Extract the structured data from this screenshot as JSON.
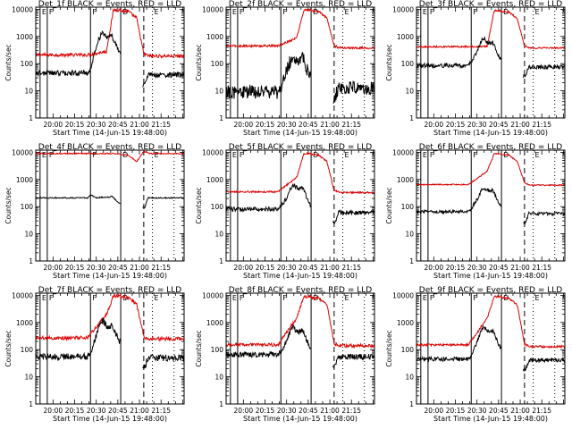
{
  "chart_data": {
    "type": "line",
    "x_axis": {
      "label": "Start Time (14-Jun-15 19:48:00)",
      "tick_labels": [
        "20:00",
        "20:15",
        "20:30",
        "20:45",
        "21:00",
        "21:15"
      ],
      "tick_minutes": [
        0,
        15,
        30,
        45,
        60,
        75
      ],
      "range_minutes": [
        -12,
        91
      ],
      "range_note": "minutes after 20:00"
    },
    "y_axis": {
      "label": "Counts/sec",
      "scale": "log",
      "ylim": [
        1,
        12000
      ],
      "tick_labels": [
        "1",
        "10",
        "100",
        "1000",
        "10000"
      ],
      "tick_values": [
        1,
        10,
        100,
        1000,
        10000
      ]
    },
    "series_colors": {
      "events": "#000000",
      "lld": "#dd0000"
    },
    "solid_markers_minutes": [
      -9,
      -4,
      26,
      47
    ],
    "dashed_markers_minutes": [
      63
    ],
    "dotted_markers_minutes": [
      69,
      84
    ],
    "solid_marker_labels": [
      "E",
      "F",
      "F",
      "D"
    ],
    "end_marker_label": "E",
    "panels": [
      {
        "title": "Det_1f BLACK = Events, RED = LLD",
        "events": {
          "base": 45,
          "p1": 1500,
          "p2": 900,
          "mid": 450,
          "post": 38,
          "noise": 0.1
        },
        "lld": {
          "base": 210,
          "pre_rise": 280,
          "peak": 9500,
          "post": 190,
          "noise": 0.06
        }
      },
      {
        "title": "Det_2f BLACK = Events, RED = LLD",
        "events": {
          "base": 9,
          "p1": 180,
          "p2": 150,
          "mid": 60,
          "post": 13,
          "noise": 0.25
        },
        "lld": {
          "base": 450,
          "pre_rise": 900,
          "peak": 9500,
          "post": 380,
          "noise": 0.04
        }
      },
      {
        "title": "Det_3f BLACK = Events, RED = LLD",
        "events": {
          "base": 85,
          "p1": 900,
          "p2": 550,
          "mid": 260,
          "post": 75,
          "noise": 0.08
        },
        "lld": {
          "base": 420,
          "pre_rise": 430,
          "peak": 9000,
          "post": 380,
          "noise": 0.03
        }
      },
      {
        "title": "Det_4f BLACK = Events, RED = LLD",
        "events": {
          "base": 210,
          "p1": 220,
          "p2": 220,
          "mid": 215,
          "post": 210,
          "noise": 0.02
        },
        "lld": {
          "base": 9000,
          "pre_rise": 9000,
          "peak": 9000,
          "post": 9000,
          "noise": 0.02
        }
      },
      {
        "title": "Det_5f BLACK = Events, RED = LLD",
        "events": {
          "base": 80,
          "p1": 650,
          "p2": 450,
          "mid": 200,
          "post": 60,
          "noise": 0.08
        },
        "lld": {
          "base": 350,
          "pre_rise": 1200,
          "peak": 9000,
          "post": 330,
          "noise": 0.03
        }
      },
      {
        "title": "Det_6f BLACK = Events, RED = LLD",
        "events": {
          "base": 65,
          "p1": 500,
          "p2": 380,
          "mid": 180,
          "post": 55,
          "noise": 0.06
        },
        "lld": {
          "base": 650,
          "pre_rise": 2000,
          "peak": 9000,
          "post": 620,
          "noise": 0.02
        }
      },
      {
        "title": "Det_7f BLACK = Events, RED = LLD",
        "events": {
          "base": 55,
          "p1": 1200,
          "p2": 700,
          "mid": 350,
          "post": 50,
          "noise": 0.12
        },
        "lld": {
          "base": 270,
          "pre_rise": 2000,
          "peak": 9500,
          "post": 250,
          "noise": 0.07
        }
      },
      {
        "title": "Det_8f BLACK = Events, RED = LLD",
        "events": {
          "base": 65,
          "p1": 700,
          "p2": 450,
          "mid": 220,
          "post": 55,
          "noise": 0.1
        },
        "lld": {
          "base": 150,
          "pre_rise": 1500,
          "peak": 9000,
          "post": 140,
          "noise": 0.06
        }
      },
      {
        "title": "Det_9f BLACK = Events, RED = LLD",
        "events": {
          "base": 45,
          "p1": 650,
          "p2": 450,
          "mid": 200,
          "post": 40,
          "noise": 0.08
        },
        "lld": {
          "base": 150,
          "pre_rise": 1400,
          "peak": 9000,
          "post": 130,
          "noise": 0.04
        }
      }
    ]
  }
}
